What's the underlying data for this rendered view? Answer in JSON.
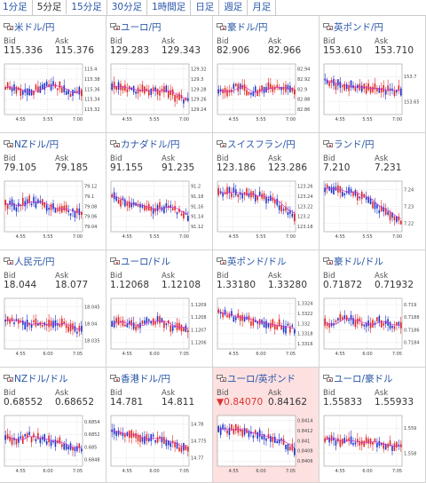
{
  "tabs": [
    {
      "label": "1分足",
      "active": false
    },
    {
      "label": "5分足",
      "active": true
    },
    {
      "label": "15分足",
      "active": false
    },
    {
      "label": "30分足",
      "active": false
    },
    {
      "label": "1時間足",
      "active": false
    },
    {
      "label": "日足",
      "active": false
    },
    {
      "label": "週足",
      "active": false
    },
    {
      "label": "月足",
      "active": false
    }
  ],
  "bid_label": "Bid",
  "ask_label": "Ask",
  "colors": {
    "link": "#2856a8",
    "up": "#1b30c8",
    "down": "#e02222",
    "ma": "#cc33cc",
    "highlight_bg": "#fde0e0"
  },
  "cells": [
    {
      "pair": "米ドル/円",
      "bid": "115.336",
      "ask": "115.376",
      "down": false,
      "chart_data": {
        "type": "candlestick",
        "x_ticks": [
          "4:55",
          "5:55",
          "7:00"
        ],
        "y_ticks": [
          "115.4",
          "115.38",
          "115.36",
          "115.34",
          "115.32"
        ],
        "trend": [
          0.55,
          0.5,
          0.45,
          0.5,
          0.6,
          0.55,
          0.4,
          0.45
        ]
      }
    },
    {
      "pair": "ユーロ/円",
      "bid": "129.283",
      "ask": "129.343",
      "down": false,
      "chart_data": {
        "type": "candlestick",
        "x_ticks": [
          "4:55",
          "5:55",
          "7:00"
        ],
        "y_ticks": [
          "129.32",
          "129.3",
          "129.28",
          "129.26",
          "129.24"
        ],
        "trend": [
          0.6,
          0.55,
          0.5,
          0.45,
          0.5,
          0.45,
          0.35,
          0.25
        ]
      }
    },
    {
      "pair": "豪ドル/円",
      "bid": "82.906",
      "ask": "82.966",
      "down": false,
      "chart_data": {
        "type": "candlestick",
        "x_ticks": [
          "4:55",
          "5:55",
          "7:00"
        ],
        "y_ticks": [
          "82.94",
          "82.92",
          "82.9",
          "82.88",
          "82.86"
        ],
        "trend": [
          0.4,
          0.5,
          0.55,
          0.45,
          0.5,
          0.55,
          0.5,
          0.45
        ]
      }
    },
    {
      "pair": "英ポンド/円",
      "bid": "153.610",
      "ask": "153.710",
      "down": false,
      "chart_data": {
        "type": "candlestick",
        "x_ticks": [
          "4:55",
          "5:55",
          "7:00"
        ],
        "y_ticks": [
          "153.7",
          "153.65"
        ],
        "trend": [
          0.65,
          0.6,
          0.55,
          0.55,
          0.5,
          0.5,
          0.45,
          0.5
        ]
      }
    },
    {
      "pair": "NZドル/円",
      "bid": "79.105",
      "ask": "79.185",
      "down": false,
      "chart_data": {
        "type": "candlestick",
        "x_ticks": [
          "4:55",
          "5:55",
          "7:00"
        ],
        "y_ticks": [
          "79.12",
          "79.1",
          "79.08",
          "79.06",
          "79.04"
        ],
        "trend": [
          0.55,
          0.5,
          0.6,
          0.55,
          0.5,
          0.45,
          0.4,
          0.35
        ]
      }
    },
    {
      "pair": "カナダドル/円",
      "bid": "91.155",
      "ask": "91.235",
      "down": false,
      "chart_data": {
        "type": "candlestick",
        "x_ticks": [
          "4:55",
          "5:55",
          "7:00"
        ],
        "y_ticks": [
          "91.2",
          "91.18",
          "91.16",
          "91.14",
          "91.12"
        ],
        "trend": [
          0.7,
          0.6,
          0.55,
          0.5,
          0.45,
          0.5,
          0.4,
          0.3
        ]
      }
    },
    {
      "pair": "スイスフラン/円",
      "bid": "123.186",
      "ask": "123.286",
      "down": false,
      "chart_data": {
        "type": "candlestick",
        "x_ticks": [
          "4:55",
          "5:55",
          "7:00"
        ],
        "y_ticks": [
          "123.26",
          "123.24",
          "123.22",
          "123.2",
          "123.18"
        ],
        "trend": [
          0.8,
          0.78,
          0.75,
          0.72,
          0.7,
          0.6,
          0.45,
          0.25
        ]
      }
    },
    {
      "pair": "ランド/円",
      "bid": "7.210",
      "ask": "7.231",
      "down": false,
      "chart_data": {
        "type": "candlestick",
        "x_ticks": [
          "4:55",
          "5:55",
          "7:00"
        ],
        "y_ticks": [
          "7.24",
          "7.23",
          "7.22"
        ],
        "trend": [
          0.85,
          0.82,
          0.78,
          0.75,
          0.6,
          0.45,
          0.3,
          0.2
        ]
      }
    },
    {
      "pair": "人民元/円",
      "bid": "18.044",
      "ask": "18.077",
      "down": false,
      "chart_data": {
        "type": "candlestick",
        "x_ticks": [
          "4:55",
          "6:00",
          "7:05"
        ],
        "y_ticks": [
          "18.045",
          "18.04",
          "18.035"
        ],
        "trend": [
          0.6,
          0.55,
          0.5,
          0.5,
          0.45,
          0.5,
          0.4,
          0.35
        ]
      }
    },
    {
      "pair": "ユーロ/ドル",
      "bid": "1.12068",
      "ask": "1.12108",
      "down": false,
      "chart_data": {
        "type": "candlestick",
        "x_ticks": [
          "4:55",
          "6:00",
          "7:05"
        ],
        "y_ticks": [
          "1.1209",
          "1.1208",
          "1.1207",
          "1.1206"
        ],
        "trend": [
          0.55,
          0.5,
          0.45,
          0.5,
          0.55,
          0.5,
          0.4,
          0.35
        ]
      }
    },
    {
      "pair": "英ポンド/ドル",
      "bid": "1.33180",
      "ask": "1.33280",
      "down": false,
      "chart_data": {
        "type": "candlestick",
        "x_ticks": [
          "4:55",
          "6:00",
          "7:05"
        ],
        "y_ticks": [
          "1.3324",
          "1.3322",
          "1.332",
          "1.3318",
          "1.3316"
        ],
        "trend": [
          0.7,
          0.65,
          0.6,
          0.55,
          0.55,
          0.5,
          0.45,
          0.4
        ]
      }
    },
    {
      "pair": "豪ドル/ドル",
      "bid": "0.71872",
      "ask": "0.71932",
      "down": false,
      "chart_data": {
        "type": "candlestick",
        "x_ticks": [
          "4:55",
          "6:00",
          "7:05"
        ],
        "y_ticks": [
          "0.719",
          "0.7188",
          "0.7186",
          "0.7184"
        ],
        "trend": [
          0.5,
          0.55,
          0.6,
          0.55,
          0.5,
          0.55,
          0.5,
          0.45
        ]
      }
    },
    {
      "pair": "NZドル/ドル",
      "bid": "0.68552",
      "ask": "0.68652",
      "down": false,
      "chart_data": {
        "type": "candlestick",
        "x_ticks": [
          "4:55",
          "6:00",
          "7:05"
        ],
        "y_ticks": [
          "0.6854",
          "0.6852",
          "0.685",
          "0.6848"
        ],
        "trend": [
          0.55,
          0.5,
          0.6,
          0.55,
          0.5,
          0.45,
          0.4,
          0.35
        ]
      }
    },
    {
      "pair": "香港ドル/円",
      "bid": "14.781",
      "ask": "14.811",
      "down": false,
      "chart_data": {
        "type": "candlestick",
        "x_ticks": [
          "4:55",
          "6:00",
          "7:05"
        ],
        "y_ticks": [
          "14.78",
          "14.775",
          "14.77"
        ],
        "trend": [
          0.7,
          0.65,
          0.6,
          0.55,
          0.55,
          0.5,
          0.4,
          0.3
        ]
      }
    },
    {
      "pair": "ユーロ/英ポンド",
      "bid": "0.84070",
      "ask": "0.84162",
      "down": true,
      "chart_data": {
        "type": "candlestick",
        "x_ticks": [
          "4:55",
          "6:00",
          "7:05"
        ],
        "y_ticks": [
          "0.8414",
          "0.8412",
          "0.841",
          "0.8408",
          "0.8406"
        ],
        "trend": [
          0.75,
          0.72,
          0.7,
          0.65,
          0.6,
          0.55,
          0.45,
          0.3
        ]
      }
    },
    {
      "pair": "ユーロ/豪ドル",
      "bid": "1.55833",
      "ask": "1.55933",
      "down": false,
      "chart_data": {
        "type": "candlestick",
        "x_ticks": [
          "4:55",
          "6:00",
          "7:05"
        ],
        "y_ticks": [
          "1.559",
          "1.558"
        ],
        "trend": [
          0.55,
          0.5,
          0.5,
          0.45,
          0.5,
          0.45,
          0.4,
          0.35
        ]
      }
    }
  ]
}
